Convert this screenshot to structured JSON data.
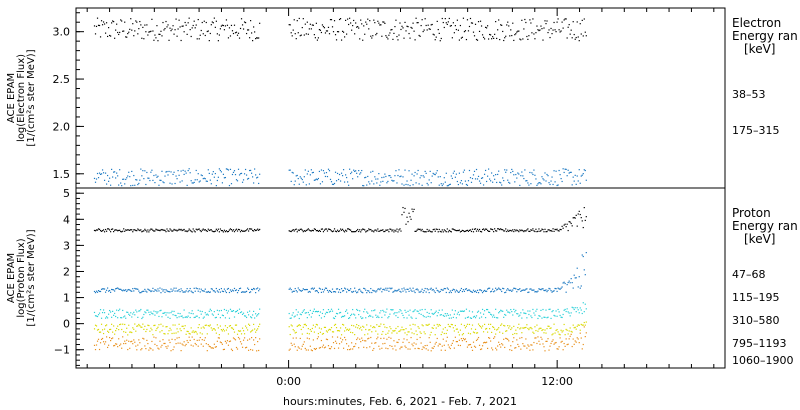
{
  "chart_data": [
    {
      "type": "scatter",
      "ylabel": [
        "ACE EPAM",
        "log(Electron Flux)",
        "[1/(cm²s ster MeV)]"
      ],
      "yticks": [
        "3.0",
        "2.5",
        "2.0",
        "1.5"
      ],
      "ylim": [
        1.35,
        3.25
      ],
      "legend_title": [
        "Electron",
        "Energy ran",
        "[keV]"
      ],
      "series": [
        {
          "name": "38–53",
          "color": "#000000",
          "baseline": 3.03,
          "jitter": 0.04
        },
        {
          "name": "175–315",
          "color": "#1a78c2",
          "baseline": 1.47,
          "jitter": 0.03
        }
      ]
    },
    {
      "type": "scatter",
      "ylabel": [
        "ACE EPAM",
        "log(Proton Flux)",
        "[1/(cm²s ster MeV)]"
      ],
      "yticks": [
        "5",
        "4",
        "3",
        "2",
        "1",
        "0",
        "−1"
      ],
      "ylim": [
        -1.7,
        5.2
      ],
      "legend_title": [
        "Proton",
        "Energy ran",
        "[keV]"
      ],
      "series": [
        {
          "name": "47–68",
          "color": "#000000",
          "baseline": 3.6,
          "jitter": 0.02
        },
        {
          "name": "115–195",
          "color": "#1a78c2",
          "baseline": 1.3,
          "jitter": 0.03
        },
        {
          "name": "310–580",
          "color": "#2ad0d8",
          "baseline": 0.4,
          "jitter": 0.06
        },
        {
          "name": "795–1193",
          "color": "#d9d900",
          "baseline": -0.2,
          "jitter": 0.07
        },
        {
          "name": "1060–1900",
          "color": "#e8901c",
          "baseline": -0.75,
          "jitter": 0.09
        }
      ]
    }
  ],
  "x_axis": {
    "xlabel": "hours:minutes, Feb.  6, 2021 - Feb.  7, 2021",
    "tick_labels": [
      "0:00",
      "12:00"
    ],
    "range_hours": [
      -9.5,
      19.5
    ],
    "data_segments_hours": [
      [
        -8.7,
        -1.3
      ],
      [
        0,
        13.3
      ]
    ]
  },
  "colors": {
    "black": "#000000",
    "blue": "#1a78c2",
    "cyan": "#2ad0d8",
    "yellow": "#d9d900",
    "orange": "#e8901c"
  }
}
